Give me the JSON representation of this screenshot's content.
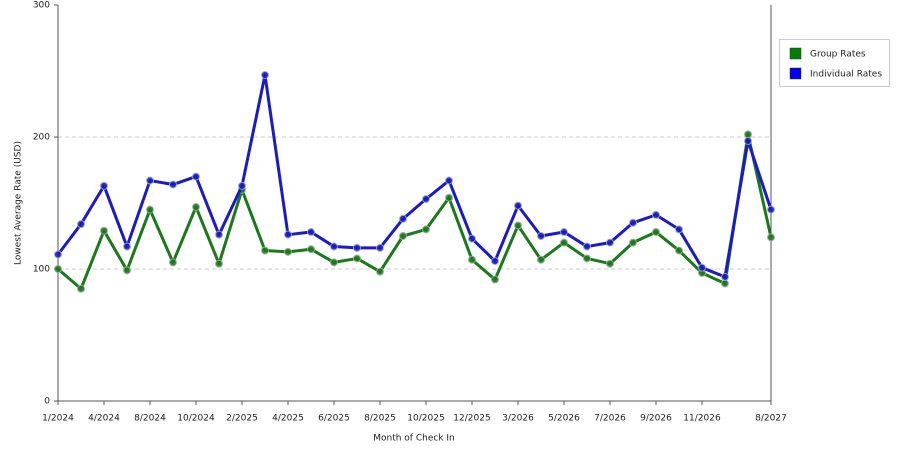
{
  "chart_data": {
    "type": "line",
    "x_label": "Month of Check In",
    "y_label": "Lowest Average Rate (USD)",
    "categories": [
      "1/2024",
      null,
      "4/2024",
      null,
      "8/2024",
      null,
      "10/2024",
      null,
      "2/2025",
      null,
      "4/2025",
      null,
      "6/2025",
      null,
      "8/2025",
      null,
      "10/2025",
      null,
      "12/2025",
      null,
      "3/2026",
      null,
      "5/2026",
      null,
      "7/2026",
      null,
      "9/2026",
      null,
      "11/2026",
      null,
      null,
      "8/2027"
    ],
    "series": [
      {
        "name": "Group Rates",
        "color": "#1a7a1a",
        "legend_color": "#008000",
        "values": [
          100,
          85,
          129,
          99,
          145,
          105,
          147,
          104,
          160,
          114,
          113,
          115,
          105,
          108,
          98,
          125,
          130,
          154,
          107,
          92,
          133,
          107,
          120,
          108,
          104,
          120,
          128,
          114,
          97,
          89,
          202,
          124
        ]
      },
      {
        "name": "Individual Rates",
        "color": "#1a1acc",
        "legend_color": "#0000ee",
        "values": [
          111,
          134,
          163,
          117,
          167,
          164,
          170,
          126,
          163,
          247,
          126,
          128,
          117,
          116,
          116,
          138,
          153,
          167,
          123,
          106,
          148,
          125,
          128,
          117,
          120,
          135,
          141,
          130,
          101,
          94,
          197,
          145
        ]
      }
    ],
    "ylim": [
      0,
      300
    ],
    "yticks": [
      0,
      100,
      200,
      300
    ],
    "grid": true,
    "legend": "right"
  }
}
